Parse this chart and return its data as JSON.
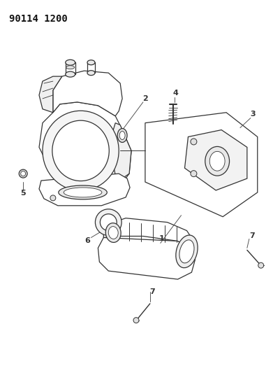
{
  "title": "90114 1200",
  "title_fontsize": 10,
  "title_weight": "bold",
  "bg_color": "#ffffff",
  "line_color": "#333333",
  "fig_width": 3.91,
  "fig_height": 5.33,
  "dpi": 100
}
